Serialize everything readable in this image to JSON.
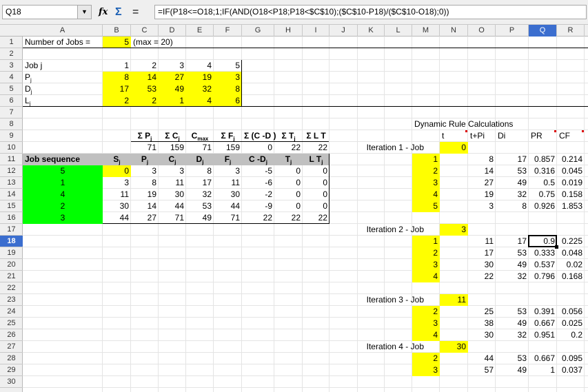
{
  "namebox": "Q18",
  "formula": "=IF(P18<=O18;1;IF(AND(O18<P18;P18<$C$10);($C$10-P18)/($C$10-O18);0))",
  "columns": [
    "A",
    "B",
    "C",
    "D",
    "E",
    "F",
    "G",
    "H",
    "I",
    "J",
    "K",
    "L",
    "M",
    "N",
    "O",
    "P",
    "Q",
    "R"
  ],
  "rows": [
    "1",
    "2",
    "3",
    "4",
    "5",
    "6",
    "7",
    "8",
    "9",
    "10",
    "11",
    "12",
    "13",
    "14",
    "15",
    "16",
    "17",
    "18",
    "19",
    "20",
    "21",
    "22",
    "23",
    "24",
    "25",
    "26",
    "27",
    "28",
    "29",
    "30"
  ],
  "sheet": {
    "num_jobs_label": "Number of Jobs =",
    "num_jobs": "5",
    "max_note": "(max = 20)",
    "job_j": "Job j",
    "p": "P",
    "d": "D",
    "l": "L",
    "jobs": [
      "1",
      "2",
      "3",
      "4",
      "5"
    ],
    "p_vals": [
      "8",
      "14",
      "27",
      "19",
      "3"
    ],
    "d_vals": [
      "17",
      "53",
      "49",
      "32",
      "8"
    ],
    "l_vals": [
      "2",
      "2",
      "1",
      "4",
      "6"
    ],
    "sum_hdr": {
      "sp": "Σ P",
      "sc": "Σ C",
      "cmax": "C",
      "cmax_sub": "max",
      "sf": "Σ F",
      "scd": "Σ (C -D )",
      "st": "Σ T",
      "slt": "Σ L T"
    },
    "sums": [
      "71",
      "159",
      "71",
      "159",
      "0",
      "22",
      "22"
    ],
    "seq_label": "Job sequence",
    "seq_hdr": [
      "S",
      "P",
      "C",
      "D",
      "F",
      "C -D",
      "T",
      "L T"
    ],
    "seq": [
      [
        "5",
        "0",
        "3",
        "3",
        "8",
        "3",
        "-5",
        "0",
        "0"
      ],
      [
        "1",
        "3",
        "8",
        "11",
        "17",
        "11",
        "-6",
        "0",
        "0"
      ],
      [
        "4",
        "11",
        "19",
        "30",
        "32",
        "30",
        "-2",
        "0",
        "0"
      ],
      [
        "2",
        "30",
        "14",
        "44",
        "53",
        "44",
        "-9",
        "0",
        "0"
      ],
      [
        "3",
        "44",
        "27",
        "71",
        "49",
        "71",
        "22",
        "22",
        "22"
      ]
    ],
    "dyn_title": "Dynamic Rule Calculations",
    "dyn_hdr": [
      "t",
      "t+Pi",
      "Di",
      "PR",
      "CF"
    ],
    "iterations": [
      {
        "label": "Iteration 1 - Job",
        "t": "0",
        "rows": [
          [
            "1",
            "8",
            "17",
            "0.857",
            "0.214"
          ],
          [
            "2",
            "14",
            "53",
            "0.316",
            "0.045"
          ],
          [
            "3",
            "27",
            "49",
            "0.5",
            "0.019"
          ],
          [
            "4",
            "19",
            "32",
            "0.75",
            "0.158"
          ],
          [
            "5",
            "3",
            "8",
            "0.926",
            "1.853"
          ]
        ]
      },
      {
        "label": "Iteration 2 - Job",
        "t": "3",
        "rows": [
          [
            "1",
            "11",
            "17",
            "0.9",
            "0.225"
          ],
          [
            "2",
            "17",
            "53",
            "0.333",
            "0.048"
          ],
          [
            "3",
            "30",
            "49",
            "0.537",
            "0.02"
          ],
          [
            "4",
            "22",
            "32",
            "0.796",
            "0.168"
          ]
        ]
      },
      {
        "label": "Iteration 3 - Job",
        "t": "11",
        "rows": [
          [
            "2",
            "25",
            "53",
            "0.391",
            "0.056"
          ],
          [
            "3",
            "38",
            "49",
            "0.667",
            "0.025"
          ],
          [
            "4",
            "30",
            "32",
            "0.951",
            "0.2"
          ]
        ]
      },
      {
        "label": "Iteration 4 - Job",
        "t": "30",
        "rows": [
          [
            "2",
            "44",
            "53",
            "0.667",
            "0.095"
          ],
          [
            "3",
            "57",
            "49",
            "1",
            "0.037"
          ]
        ]
      }
    ]
  }
}
